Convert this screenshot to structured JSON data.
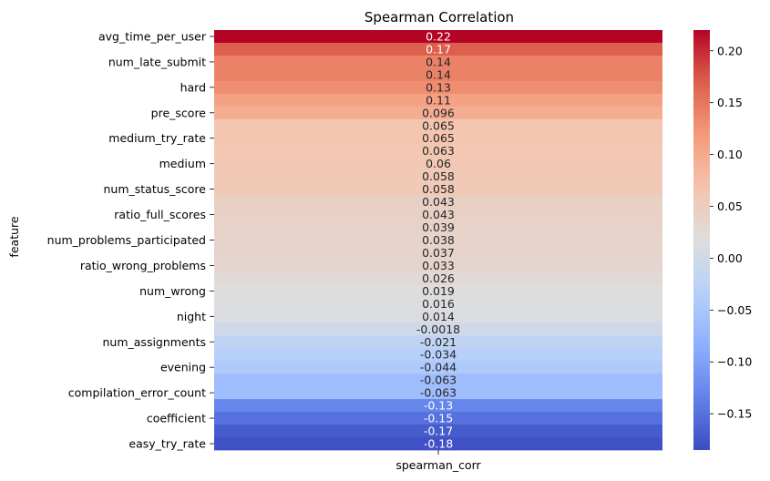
{
  "chart_data": {
    "type": "heatmap",
    "title": "Spearman Correlation",
    "ylabel": "feature",
    "xlabel": "",
    "columns": [
      "spearman_corr"
    ],
    "rows": [
      {
        "label": "avg_time_per_user",
        "value": 0.22,
        "text": "0.22",
        "show_label": true
      },
      {
        "label": "",
        "value": 0.17,
        "text": "0.17",
        "show_label": false
      },
      {
        "label": "num_late_submit",
        "value": 0.14,
        "text": "0.14",
        "show_label": true
      },
      {
        "label": "",
        "value": 0.14,
        "text": "0.14",
        "show_label": false
      },
      {
        "label": "hard",
        "value": 0.13,
        "text": "0.13",
        "show_label": true
      },
      {
        "label": "",
        "value": 0.11,
        "text": "0.11",
        "show_label": false
      },
      {
        "label": "pre_score",
        "value": 0.096,
        "text": "0.096",
        "show_label": true
      },
      {
        "label": "",
        "value": 0.065,
        "text": "0.065",
        "show_label": false
      },
      {
        "label": "medium_try_rate",
        "value": 0.065,
        "text": "0.065",
        "show_label": true
      },
      {
        "label": "",
        "value": 0.063,
        "text": "0.063",
        "show_label": false
      },
      {
        "label": "medium",
        "value": 0.06,
        "text": "0.06",
        "show_label": true
      },
      {
        "label": "",
        "value": 0.058,
        "text": "0.058",
        "show_label": false
      },
      {
        "label": "num_status_score",
        "value": 0.058,
        "text": "0.058",
        "show_label": true
      },
      {
        "label": "",
        "value": 0.043,
        "text": "0.043",
        "show_label": false
      },
      {
        "label": "ratio_full_scores",
        "value": 0.043,
        "text": "0.043",
        "show_label": true
      },
      {
        "label": "",
        "value": 0.039,
        "text": "0.039",
        "show_label": false
      },
      {
        "label": "num_problems_participated",
        "value": 0.038,
        "text": "0.038",
        "show_label": true
      },
      {
        "label": "",
        "value": 0.037,
        "text": "0.037",
        "show_label": false
      },
      {
        "label": "ratio_wrong_problems",
        "value": 0.033,
        "text": "0.033",
        "show_label": true
      },
      {
        "label": "",
        "value": 0.026,
        "text": "0.026",
        "show_label": false
      },
      {
        "label": "num_wrong",
        "value": 0.019,
        "text": "0.019",
        "show_label": true
      },
      {
        "label": "",
        "value": 0.016,
        "text": "0.016",
        "show_label": false
      },
      {
        "label": "night",
        "value": 0.014,
        "text": "0.014",
        "show_label": true
      },
      {
        "label": "",
        "value": -0.0018,
        "text": "-0.0018",
        "show_label": false
      },
      {
        "label": "num_assignments",
        "value": -0.021,
        "text": "-0.021",
        "show_label": true
      },
      {
        "label": "",
        "value": -0.034,
        "text": "-0.034",
        "show_label": false
      },
      {
        "label": "evening",
        "value": -0.044,
        "text": "-0.044",
        "show_label": true
      },
      {
        "label": "",
        "value": -0.063,
        "text": "-0.063",
        "show_label": false
      },
      {
        "label": "compilation_error_count",
        "value": -0.063,
        "text": "-0.063",
        "show_label": true
      },
      {
        "label": "",
        "value": -0.13,
        "text": "-0.13",
        "show_label": false
      },
      {
        "label": "coefficient",
        "value": -0.15,
        "text": "-0.15",
        "show_label": true
      },
      {
        "label": "",
        "value": -0.17,
        "text": "-0.17",
        "show_label": false
      },
      {
        "label": "easy_try_rate",
        "value": -0.18,
        "text": "-0.18",
        "show_label": true
      }
    ],
    "colormap": "coolwarm",
    "vmin": -0.185,
    "vmax": 0.22,
    "colorbar_ticks": [
      {
        "value": 0.2,
        "text": "0.20"
      },
      {
        "value": 0.15,
        "text": "0.15"
      },
      {
        "value": 0.1,
        "text": "0.10"
      },
      {
        "value": 0.05,
        "text": "0.05"
      },
      {
        "value": 0.0,
        "text": "0.00"
      },
      {
        "value": -0.05,
        "text": "−0.05"
      },
      {
        "value": -0.1,
        "text": "−0.10"
      },
      {
        "value": -0.15,
        "text": "−0.15"
      }
    ]
  }
}
